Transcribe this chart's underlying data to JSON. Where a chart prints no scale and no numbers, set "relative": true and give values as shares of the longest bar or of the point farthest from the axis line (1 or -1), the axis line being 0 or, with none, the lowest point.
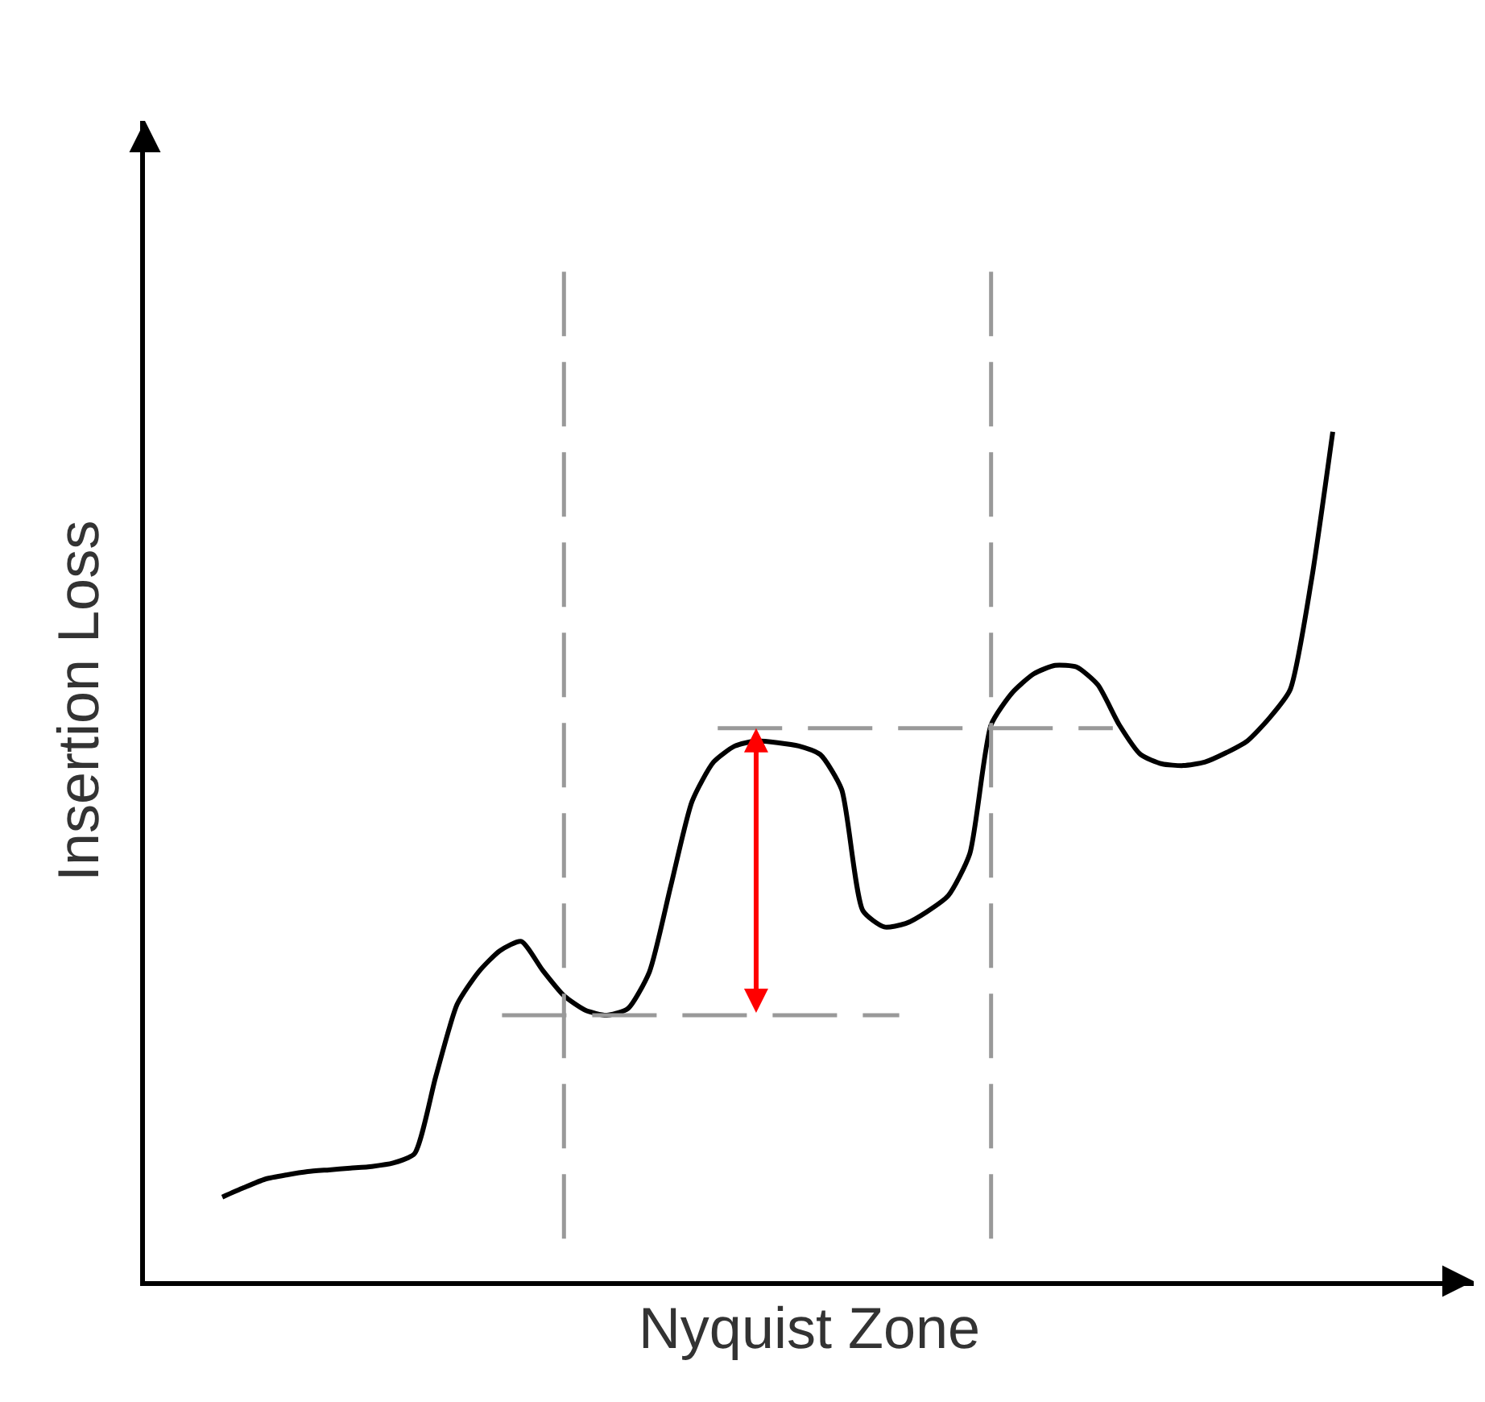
{
  "chart_data": {
    "type": "line",
    "relative": true,
    "xlabel": "Nyquist Zone",
    "ylabel": "Insertion Loss",
    "categories": [
      null,
      null,
      null,
      null,
      null,
      null,
      null,
      null,
      null,
      null,
      null,
      null,
      null,
      null,
      null,
      null,
      null,
      null,
      null,
      null,
      null,
      null,
      null,
      null,
      null,
      null,
      null,
      null,
      null,
      null,
      null,
      null,
      null,
      null,
      null,
      null,
      null,
      null,
      null,
      null,
      null,
      null,
      null,
      null,
      null,
      null,
      null,
      null,
      null,
      null,
      null,
      null,
      null
    ],
    "series": [
      {
        "color": "#000000",
        "values": [
          0.099,
          0.11,
          0.12,
          0.125,
          0.129,
          0.131,
          0.133,
          0.135,
          0.139,
          0.15,
          0.241,
          0.326,
          0.364,
          0.389,
          0.4,
          0.366,
          0.336,
          0.319,
          0.313,
          0.321,
          0.364,
          0.465,
          0.565,
          0.611,
          0.63,
          0.636,
          0.634,
          0.63,
          0.62,
          0.579,
          0.436,
          0.417,
          0.421,
          0.435,
          0.454,
          0.503,
          0.655,
          0.693,
          0.715,
          0.725,
          0.723,
          0.702,
          0.655,
          0.62,
          0.609,
          0.607,
          0.611,
          0.622,
          0.636,
          0.662,
          0.696,
          0.825,
          1.0
        ]
      }
    ],
    "ref_lines": [
      {
        "axis": "y",
        "value": 0.651,
        "color": "#999999",
        "line_style": "dashed"
      },
      {
        "axis": "y",
        "value": 0.313,
        "color": "#999999",
        "line_style": "dashed"
      }
    ],
    "tick_labels": false,
    "marker": "none",
    "line_style": "solid"
  }
}
